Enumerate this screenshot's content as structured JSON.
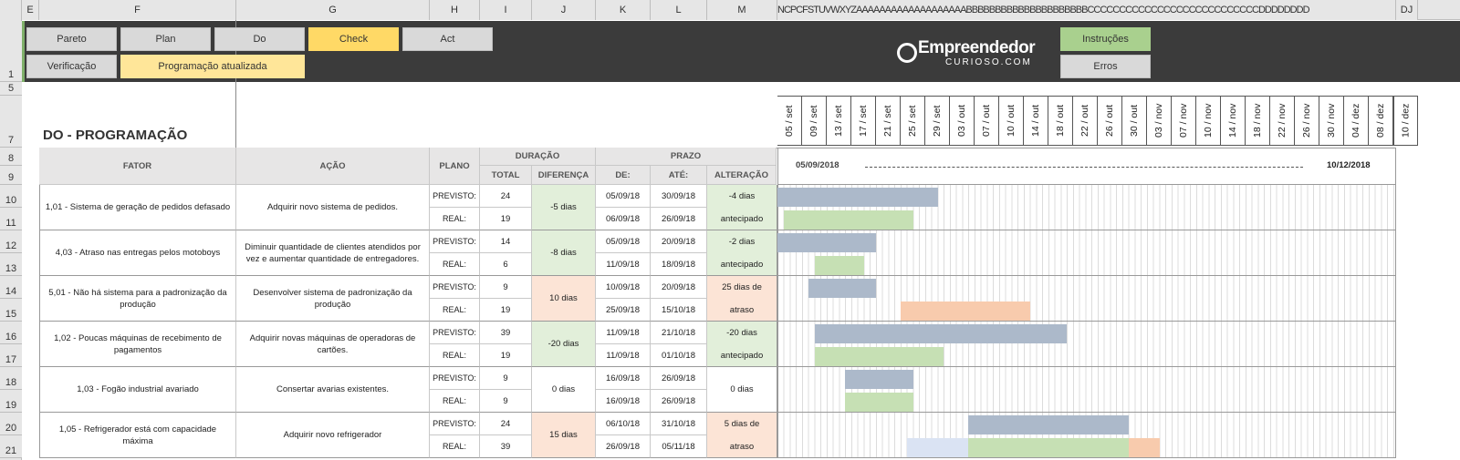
{
  "column_headers": [
    "E",
    "F",
    "G",
    "H",
    "I",
    "J",
    "K",
    "L",
    "M",
    "NCPCFSTUVWXYZAAAAAAAAAAAAAAAAAAABBBBBBBBBBBBBBBBBBBBBCCCCCCCCCCCCCCCCCCCCCCCCCCCDDDDDDDD",
    "DJ"
  ],
  "row_numbers": [
    "1",
    "5",
    "7",
    "8",
    "9",
    "10",
    "11",
    "12",
    "13",
    "14",
    "15",
    "16",
    "17",
    "18",
    "19",
    "20",
    "21"
  ],
  "toolbar": {
    "buttons": [
      "Pareto",
      "Plan",
      "Do",
      "Check",
      "Act",
      "Verificação",
      "Programação atualizada",
      "Instruções",
      "Erros"
    ],
    "logo": {
      "name": "Empreendedor",
      "domain": "CURIOSO.COM"
    }
  },
  "title": "DO - PROGRAMAÇÃO",
  "table": {
    "fator": "FATOR",
    "acao": "AÇÃO",
    "plano": "PLANO",
    "duracao": "DURAÇÃO",
    "total": "TOTAL",
    "diferenca": "DIFERENÇA",
    "prazo": "PRAZO",
    "de": "DE:",
    "ate": "ATÉ:",
    "alteracao": "ALTERAÇÃO",
    "plan_labels": [
      "PREVISTO:",
      "REAL:"
    ]
  },
  "gantt": {
    "date_labels": [
      "05 / set",
      "09 / set",
      "13 / set",
      "17 / set",
      "21 / set",
      "25 / set",
      "29 / set",
      "03 / out",
      "07 / out",
      "10 / out",
      "14 / out",
      "18 / out",
      "22 / out",
      "26 / out",
      "30 / out",
      "03 / nov",
      "07 / nov",
      "10 / nov",
      "14 / nov",
      "18 / nov",
      "22 / nov",
      "26 / nov",
      "30 / nov",
      "04 / dez",
      "08 / dez",
      "10 / dez"
    ],
    "start": "05/09/2018",
    "end": "10/12/2018"
  },
  "tasks": [
    {
      "fator": "1,01 - Sistema de geração de pedidos defasado",
      "acao": "Adquirir novo sistema de pedidos.",
      "previsto": {
        "total": 24,
        "de": "05/09/18",
        "ate": "30/09/18"
      },
      "real": {
        "total": 19,
        "de": "06/09/18",
        "ate": "26/09/18"
      },
      "diferenca": "-5 dias",
      "alteracao": "-4 dias antecipado"
    },
    {
      "fator": "4,03 - Atraso nas entregas pelos motoboys",
      "acao": "Diminuir quantidade de clientes atendidos por vez e aumentar quantidade de entregadores.",
      "previsto": {
        "total": 14,
        "de": "05/09/18",
        "ate": "20/09/18"
      },
      "real": {
        "total": 6,
        "de": "11/09/18",
        "ate": "18/09/18"
      },
      "diferenca": "-8 dias",
      "alteracao": "-2 dias antecipado"
    },
    {
      "fator": "5,01 - Não há sistema para a padronização da produção",
      "acao": "Desenvolver sistema de padronização da produção",
      "previsto": {
        "total": 9,
        "de": "10/09/18",
        "ate": "20/09/18"
      },
      "real": {
        "total": 19,
        "de": "25/09/18",
        "ate": "15/10/18"
      },
      "diferenca": "10 dias",
      "alteracao": "25 dias de atraso"
    },
    {
      "fator": "1,02 - Poucas máquinas de recebimento de pagamentos",
      "acao": "Adquirir novas máquinas de operadoras de cartões.",
      "previsto": {
        "total": 39,
        "de": "11/09/18",
        "ate": "21/10/18"
      },
      "real": {
        "total": 19,
        "de": "11/09/18",
        "ate": "01/10/18"
      },
      "diferenca": "-20 dias",
      "alteracao": "-20 dias antecipado"
    },
    {
      "fator": "1,03 - Fogão industrial avariado",
      "acao": "Consertar avarias existentes.",
      "previsto": {
        "total": 9,
        "de": "16/09/18",
        "ate": "26/09/18"
      },
      "real": {
        "total": 9,
        "de": "16/09/18",
        "ate": "26/09/18"
      },
      "diferenca": "0 dias",
      "alteracao": "0 dias"
    },
    {
      "fator": "1,05 - Refrigerador está com capacidade máxima",
      "acao": "Adquirir novo refrigerador",
      "previsto": {
        "total": 24,
        "de": "06/10/18",
        "ate": "31/10/18"
      },
      "real": {
        "total": 39,
        "de": "26/09/18",
        "ate": "05/11/18"
      },
      "diferenca": "15 dias",
      "alteracao": "5 dias de atraso"
    }
  ]
}
